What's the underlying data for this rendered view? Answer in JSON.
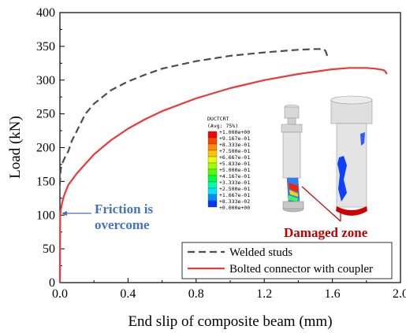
{
  "chart_data": {
    "type": "line",
    "xlabel": "End slip of composite beam (mm)",
    "ylabel": "Load (kN)",
    "xlim": [
      0,
      2.0
    ],
    "ylim": [
      0,
      400
    ],
    "xticks": [
      0.0,
      0.4,
      0.8,
      1.2,
      1.6,
      2.0
    ],
    "xtick_labels": [
      "0.0",
      "0.4",
      "0.8",
      "1.2",
      "1.6",
      "2.0"
    ],
    "yticks": [
      0,
      50,
      100,
      150,
      200,
      250,
      300,
      350,
      400
    ],
    "ytick_labels": [
      "0",
      "50",
      "100",
      "150",
      "200",
      "250",
      "300",
      "350",
      "400"
    ],
    "grid": false,
    "legend_position": "bottom-right",
    "series": [
      {
        "name": "Welded studs",
        "color": "#4d4d4d",
        "style": "dashed",
        "x": [
          0.0,
          0.003,
          0.005,
          0.01,
          0.02,
          0.03,
          0.05,
          0.07,
          0.1,
          0.12,
          0.15,
          0.2,
          0.25,
          0.3,
          0.4,
          0.5,
          0.6,
          0.8,
          1.0,
          1.2,
          1.4,
          1.5,
          1.55,
          1.56,
          1.57
        ],
        "y": [
          145,
          160,
          168,
          175,
          180,
          186,
          195,
          210,
          225,
          235,
          250,
          265,
          275,
          285,
          298,
          308,
          317,
          328,
          336,
          341,
          345,
          346,
          346,
          343,
          336
        ]
      },
      {
        "name": "Bolted connector with coupler",
        "color": "#e8393b",
        "style": "solid",
        "x": [
          0.0,
          0.002,
          0.005,
          0.01,
          0.02,
          0.03,
          0.05,
          0.1,
          0.15,
          0.2,
          0.3,
          0.4,
          0.5,
          0.6,
          0.8,
          1.0,
          1.2,
          1.4,
          1.6,
          1.7,
          1.8,
          1.85,
          1.9,
          1.91,
          1.92
        ],
        "y": [
          0,
          100,
          108,
          115,
          125,
          133,
          145,
          162,
          176,
          190,
          211,
          228,
          242,
          254,
          273,
          288,
          300,
          309,
          316,
          318,
          318,
          317,
          315,
          313,
          309
        ]
      }
    ],
    "annotations": {
      "friction_line1": "Friction is",
      "friction_line2": "overcome",
      "friction_color": "#4472c4",
      "damage": "Damaged zone",
      "damage_color": "#c00000"
    },
    "contour_legend": {
      "title_line1": "DUCTCRT",
      "title_line2": "(Avg: 75%)",
      "entries": [
        "+1.000e+00",
        "+9.167e-01",
        "+8.333e-01",
        "+7.500e-01",
        "+6.667e-01",
        "+5.833e-01",
        "+5.000e-01",
        "+4.167e-01",
        "+3.333e-01",
        "+2.500e-01",
        "+1.667e-01",
        "+8.333e-02",
        "+0.000e+00"
      ],
      "colors": [
        "#ff0000",
        "#ff4500",
        "#ff8c00",
        "#ffc400",
        "#e6ff00",
        "#9cff00",
        "#4cff00",
        "#00ff40",
        "#00ffaa",
        "#00e4ff",
        "#008cff",
        "#0038ff",
        "#0000ff"
      ]
    }
  }
}
